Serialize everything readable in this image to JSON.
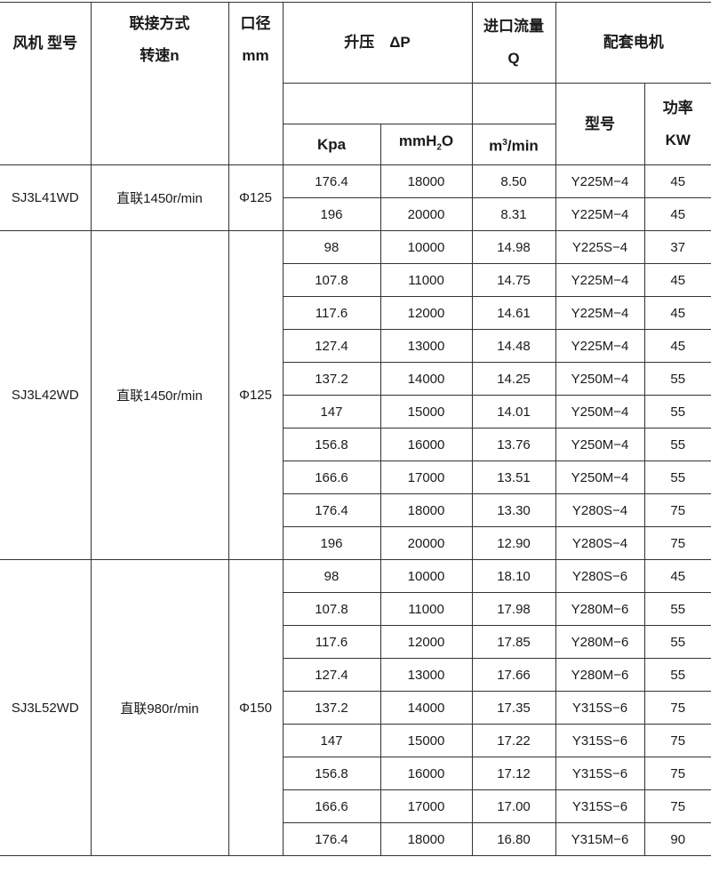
{
  "header": {
    "fan_model": "风机 型号",
    "connection_line1": "联接方式",
    "connection_line2": "转速n",
    "bore_line1": "口径",
    "bore_line2": "mm",
    "pressure": "升压　ΔP",
    "flow_line1": "进口流量",
    "flow_line2": "Q",
    "motor": "配套电机",
    "unit_kpa": "Kpa",
    "unit_mmh2o_a": "mmH",
    "unit_mmh2o_sub": "2",
    "unit_mmh2o_b": "O",
    "unit_flow_a": "m",
    "unit_flow_sup": "3",
    "unit_flow_b": "/min",
    "motor_model": "型号",
    "power_line1": "功率",
    "power_line2": "KW"
  },
  "groups": [
    {
      "model": "SJ3L41WD",
      "connection": "直联1450r/min",
      "bore": "Φ125",
      "rows": [
        [
          "176.4",
          "18000",
          "8.50",
          "Y225M−4",
          "45"
        ],
        [
          "196",
          "20000",
          "8.31",
          "Y225M−4",
          "45"
        ]
      ]
    },
    {
      "model": "SJ3L42WD",
      "connection": "直联1450r/min",
      "bore": "Φ125",
      "rows": [
        [
          "98",
          "10000",
          "14.98",
          "Y225S−4",
          "37"
        ],
        [
          "107.8",
          "11000",
          "14.75",
          "Y225M−4",
          "45"
        ],
        [
          "117.6",
          "12000",
          "14.61",
          "Y225M−4",
          "45"
        ],
        [
          "127.4",
          "13000",
          "14.48",
          "Y225M−4",
          "45"
        ],
        [
          "137.2",
          "14000",
          "14.25",
          "Y250M−4",
          "55"
        ],
        [
          "147",
          "15000",
          "14.01",
          "Y250M−4",
          "55"
        ],
        [
          "156.8",
          "16000",
          "13.76",
          "Y250M−4",
          "55"
        ],
        [
          "166.6",
          "17000",
          "13.51",
          "Y250M−4",
          "55"
        ],
        [
          "176.4",
          "18000",
          "13.30",
          "Y280S−4",
          "75"
        ],
        [
          "196",
          "20000",
          "12.90",
          "Y280S−4",
          "75"
        ]
      ]
    },
    {
      "model": "SJ3L52WD",
      "connection": "直联980r/min",
      "bore": "Φ150",
      "rows": [
        [
          "98",
          "10000",
          "18.10",
          "Y280S−6",
          "45"
        ],
        [
          "107.8",
          "11000",
          "17.98",
          "Y280M−6",
          "55"
        ],
        [
          "117.6",
          "12000",
          "17.85",
          "Y280M−6",
          "55"
        ],
        [
          "127.4",
          "13000",
          "17.66",
          "Y280M−6",
          "55"
        ],
        [
          "137.2",
          "14000",
          "17.35",
          "Y315S−6",
          "75"
        ],
        [
          "147",
          "15000",
          "17.22",
          "Y315S−6",
          "75"
        ],
        [
          "156.8",
          "16000",
          "17.12",
          "Y315S−6",
          "75"
        ],
        [
          "166.6",
          "17000",
          "17.00",
          "Y315S−6",
          "75"
        ],
        [
          "176.4",
          "18000",
          "16.80",
          "Y315M−6",
          "90"
        ]
      ]
    }
  ]
}
